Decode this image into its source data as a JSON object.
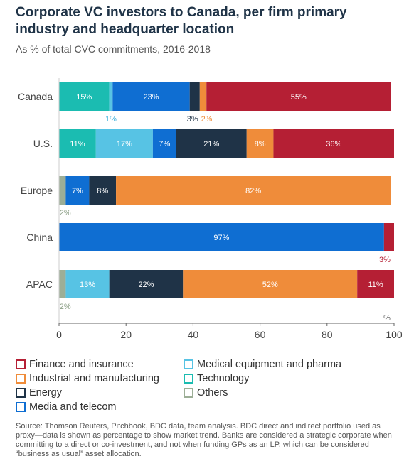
{
  "title": "Corporate VC investors to Canada, per firm primary industry and headquarter location",
  "subtitle": "As % of total CVC commitments, 2016-2018",
  "source": "Source: Thomson Reuters, Pitchbook, BDC data, team analysis. BDC direct and indirect portfolio used as proxy—data is shown as percentage to show market trend. Banks are considered a strategic corporate when committing to a direct or co-investment, and not when funding GPs as an LP, which can be considered “business as usual” asset allocation.",
  "colors": {
    "finance": "#b51f34",
    "medical": "#57c3e4",
    "industrial": "#ef8c3a",
    "technology": "#1bbcb1",
    "energy": "#1f3347",
    "others": "#9cae96",
    "media": "#0f6ed2"
  },
  "legend": [
    {
      "key": "finance",
      "label": "Finance and insurance"
    },
    {
      "key": "medical",
      "label": "Medical equipment and pharma"
    },
    {
      "key": "industrial",
      "label": "Industrial and manufacturing"
    },
    {
      "key": "technology",
      "label": "Technology"
    },
    {
      "key": "energy",
      "label": "Energy"
    },
    {
      "key": "others",
      "label": "Others"
    },
    {
      "key": "media",
      "label": "Media and telecom"
    }
  ],
  "chart_data": {
    "type": "bar",
    "orientation": "horizontal",
    "stacked": true,
    "title": "Corporate VC investors to Canada, per firm primary industry and headquarter location",
    "subtitle": "As % of total CVC commitments, 2016-2018",
    "categories": [
      "Canada",
      "U.S.",
      "Europe",
      "China",
      "APAC"
    ],
    "x_ticks": [
      "0",
      "20",
      "40",
      "60",
      "80",
      "100"
    ],
    "x_unit": "%",
    "xlim": [
      0,
      100
    ],
    "series": [
      {
        "name": "Others",
        "key": "others",
        "values": [
          0,
          0,
          2,
          0,
          2
        ],
        "labels": [
          "",
          "",
          "2%",
          "",
          "2%"
        ]
      },
      {
        "name": "Technology",
        "key": "technology",
        "values": [
          15,
          11,
          0,
          0,
          0
        ],
        "labels": [
          "15%",
          "11%",
          "",
          "",
          ""
        ]
      },
      {
        "name": "Medical equipment and pharma",
        "key": "medical",
        "values": [
          1,
          17,
          0,
          0,
          13
        ],
        "labels": [
          "1%",
          "17%",
          "",
          "",
          "13%"
        ]
      },
      {
        "name": "Media and telecom",
        "key": "media",
        "values": [
          23,
          7,
          7,
          97,
          0
        ],
        "labels": [
          "23%",
          "7%",
          "7%",
          "97%",
          ""
        ]
      },
      {
        "name": "Energy",
        "key": "energy",
        "values": [
          3,
          21,
          8,
          0,
          22
        ],
        "labels": [
          "3%",
          "21%",
          "8%",
          "",
          "22%"
        ]
      },
      {
        "name": "Industrial and manufacturing",
        "key": "industrial",
        "values": [
          2,
          8,
          82,
          0,
          52
        ],
        "labels": [
          "2%",
          "8%",
          "82%",
          "",
          "52%"
        ]
      },
      {
        "name": "Finance and insurance",
        "key": "finance",
        "values": [
          55,
          36,
          0,
          3,
          11
        ],
        "labels": [
          "55%",
          "36%",
          "",
          "3%",
          "11%"
        ]
      }
    ]
  }
}
